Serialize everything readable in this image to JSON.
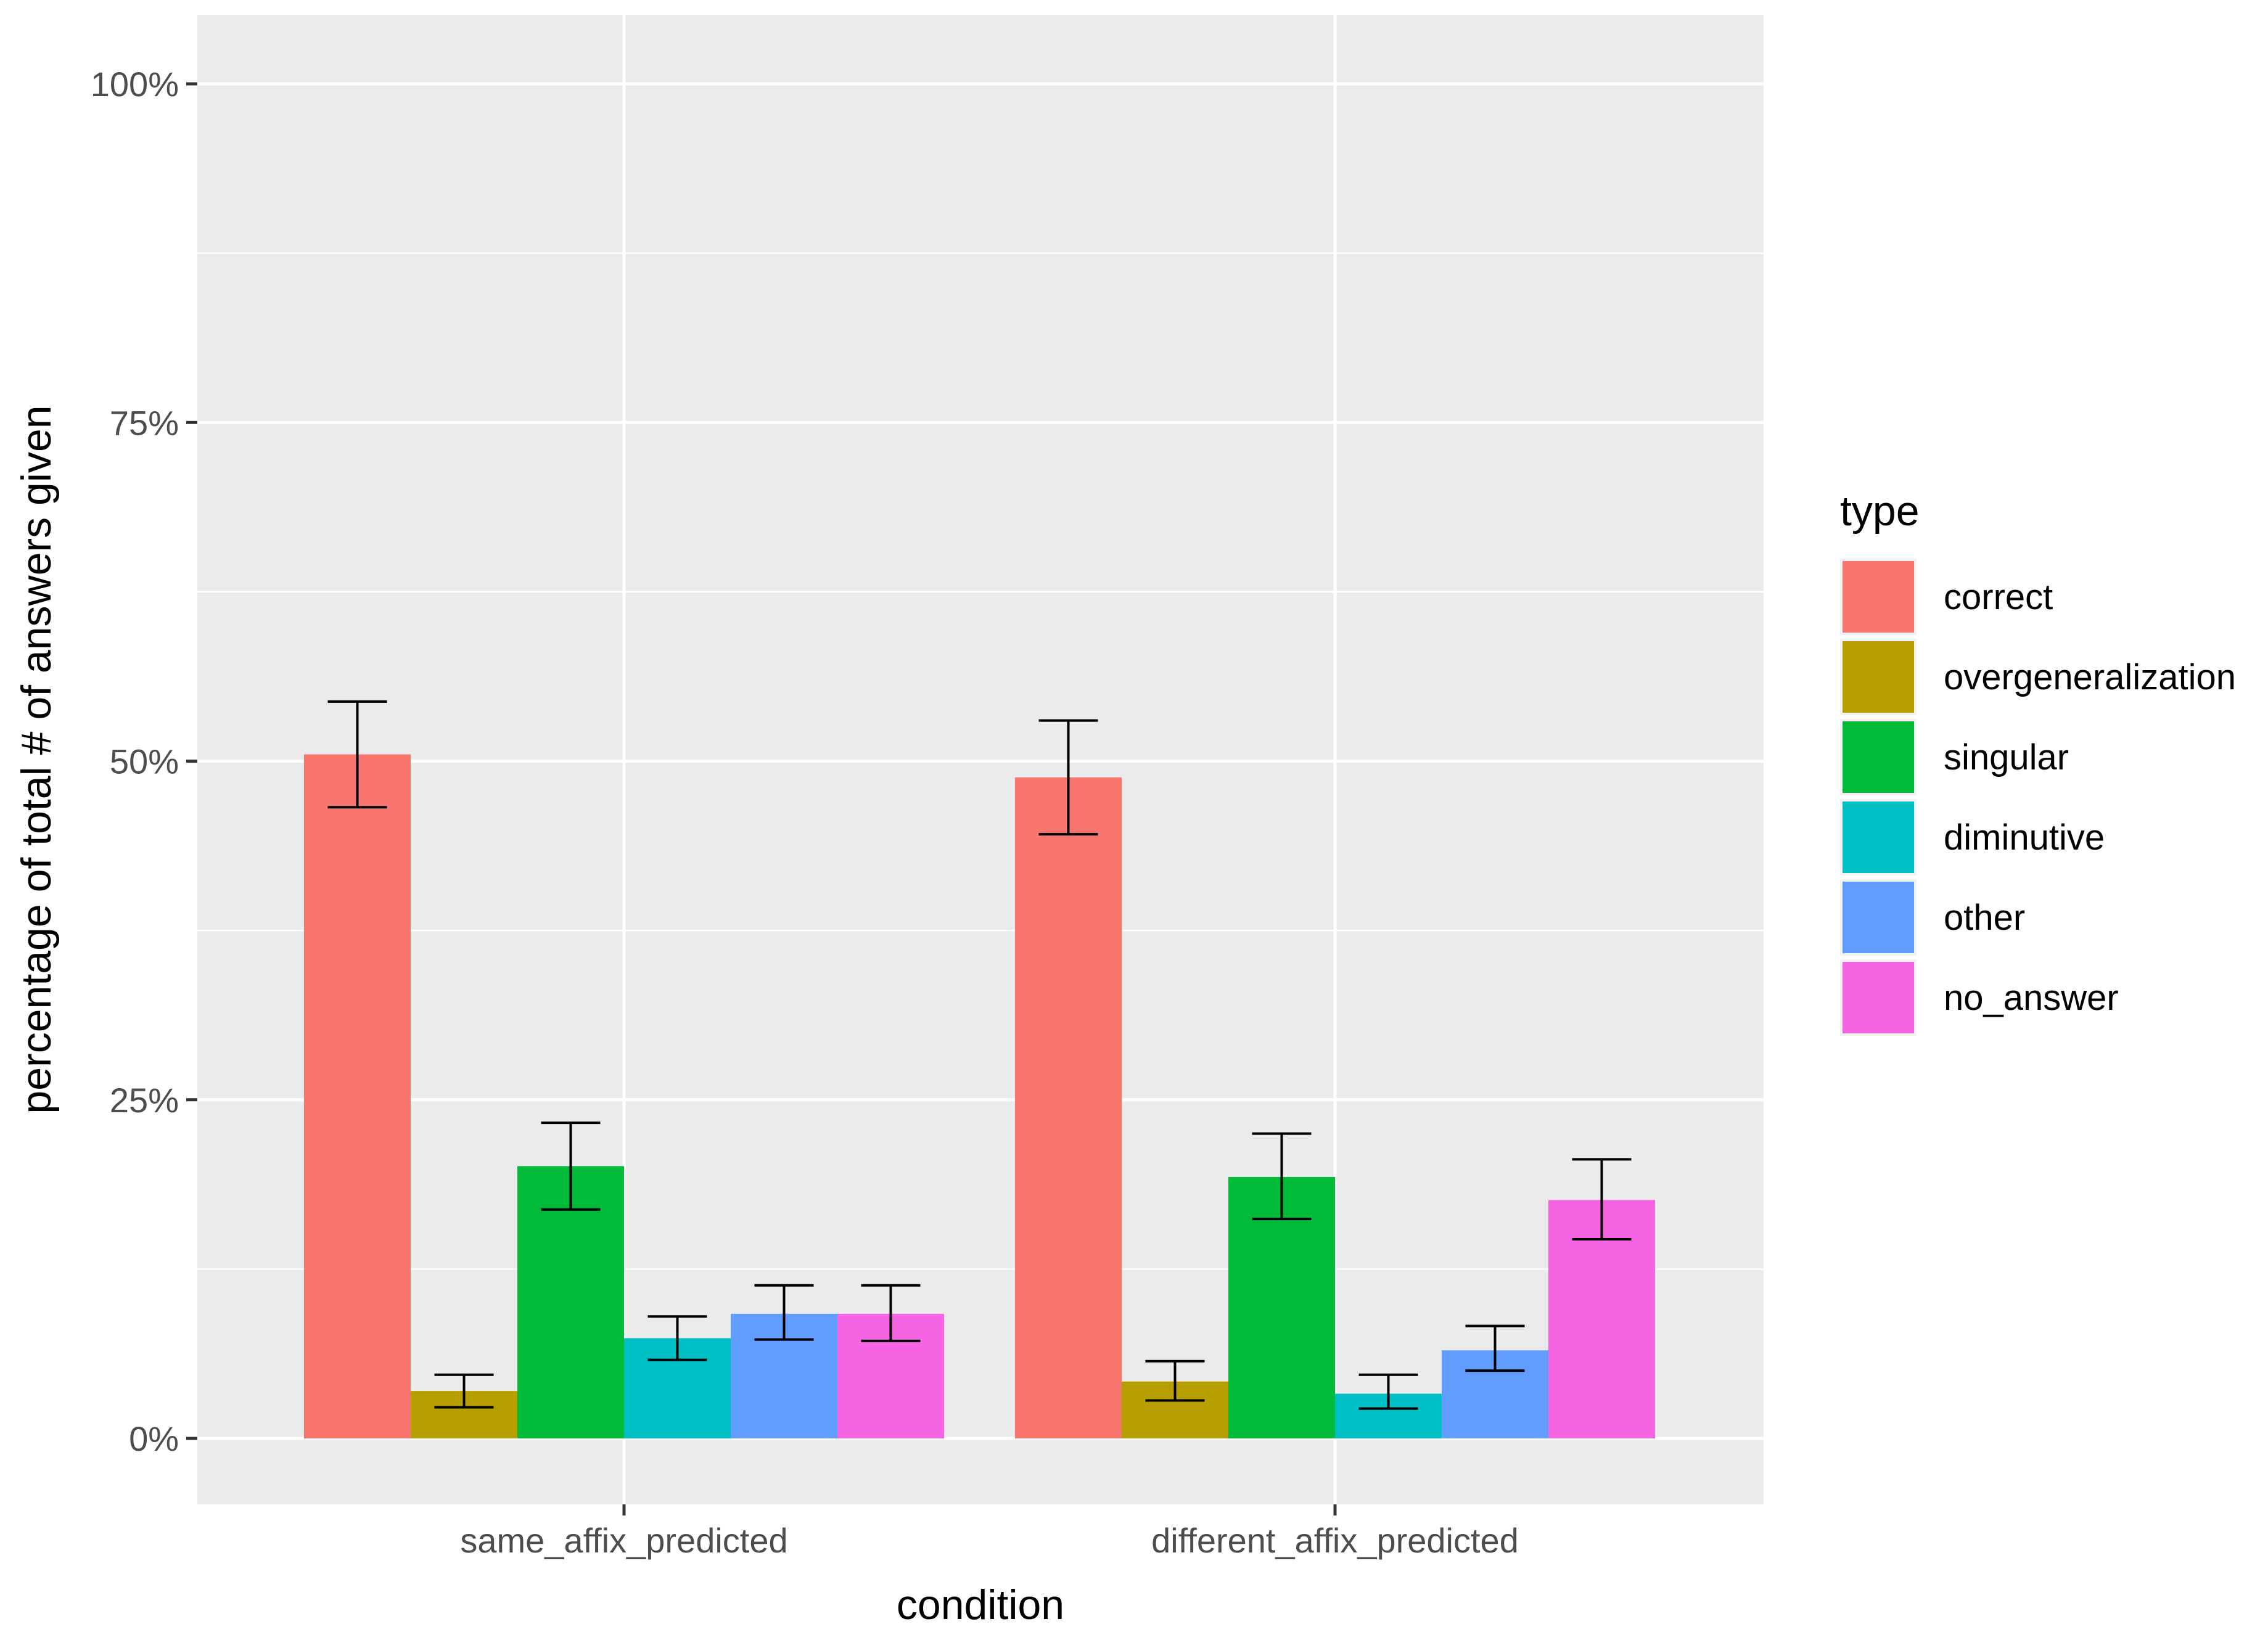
{
  "chart_data": {
    "type": "bar",
    "title": "",
    "xlabel": "condition",
    "ylabel": "percentage of total # of answers given",
    "categories": [
      "same_affix_predicted",
      "different_affix_predicted"
    ],
    "ylim": [
      -0.1,
      1.0
    ],
    "yticks": [
      0,
      0.25,
      0.5,
      0.75,
      1.0
    ],
    "ytick_labels": [
      "0%",
      "25%",
      "50%",
      "75%",
      "100%"
    ],
    "grid": true,
    "legend": {
      "title": "type",
      "position": "right"
    },
    "series": [
      {
        "name": "correct",
        "color": "#F8766D",
        "values": [
          0.505,
          0.488
        ],
        "error_low": [
          0.466,
          0.446
        ],
        "error_high": [
          0.544,
          0.53
        ]
      },
      {
        "name": "overgeneralization",
        "color": "#B79F00",
        "values": [
          0.035,
          0.042
        ],
        "error_low": [
          0.023,
          0.028
        ],
        "error_high": [
          0.047,
          0.057
        ]
      },
      {
        "name": "singular",
        "color": "#00BA38",
        "values": [
          0.201,
          0.193
        ],
        "error_low": [
          0.169,
          0.162
        ],
        "error_high": [
          0.233,
          0.225
        ]
      },
      {
        "name": "diminutive",
        "color": "#00BFC4",
        "values": [
          0.074,
          0.033
        ],
        "error_low": [
          0.058,
          0.022
        ],
        "error_high": [
          0.09,
          0.047
        ]
      },
      {
        "name": "other",
        "color": "#619CFF",
        "values": [
          0.092,
          0.065
        ],
        "error_low": [
          0.073,
          0.05
        ],
        "error_high": [
          0.113,
          0.083
        ]
      },
      {
        "name": "no_answer",
        "color": "#F564E3",
        "values": [
          0.092,
          0.176
        ],
        "error_low": [
          0.072,
          0.147
        ],
        "error_high": [
          0.113,
          0.206
        ]
      }
    ]
  }
}
